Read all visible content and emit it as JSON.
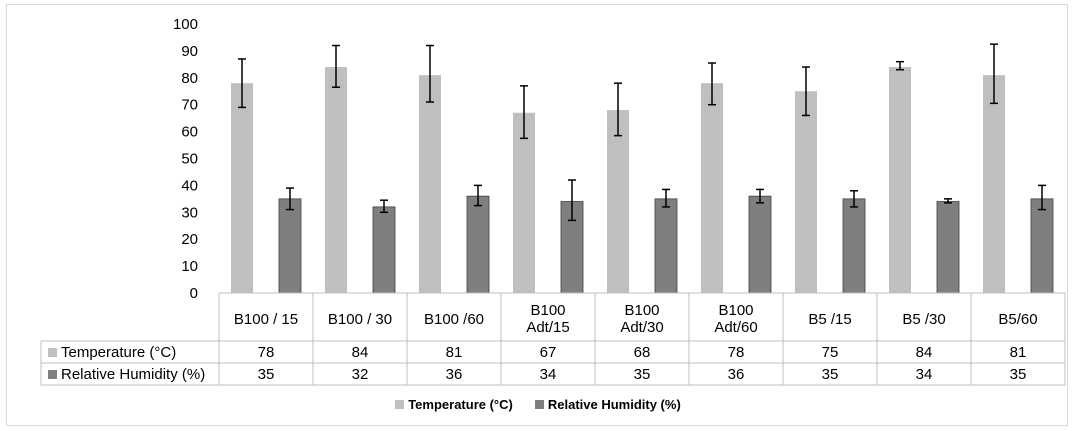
{
  "chart_data": {
    "type": "bar",
    "categories": [
      "B100 / 15",
      "B100 / 30",
      "B100 /60",
      "B100\nAdt/15",
      "B100\nAdt/30",
      "B100\nAdt/60",
      "B5 /15",
      "B5 /30",
      "B5/60"
    ],
    "series": [
      {
        "name": "Temperature (°C)",
        "color": "#bfbfbf",
        "values": [
          78,
          84,
          81,
          67,
          68,
          78,
          75,
          84,
          81
        ],
        "error_low": [
          69,
          76.5,
          71,
          57.5,
          58.5,
          70,
          66,
          83,
          70.5
        ],
        "error_high": [
          87,
          92,
          92,
          77,
          78,
          85.5,
          84,
          86,
          92.5
        ],
        "table_values": [
          "78",
          "84",
          "81",
          "67",
          "68",
          "78",
          "75",
          "84",
          "81"
        ]
      },
      {
        "name": "Relative Humidity (%)",
        "color": "#7f7f7f",
        "values": [
          35,
          32,
          36,
          34,
          35,
          36,
          35,
          34,
          35
        ],
        "error_low": [
          31,
          30,
          32.5,
          27,
          32,
          33.5,
          32,
          33.5,
          31
        ],
        "error_high": [
          39,
          34.5,
          40,
          42,
          38.5,
          38.5,
          38,
          35,
          40
        ],
        "table_values": [
          "35",
          "32",
          "36",
          "34",
          "35",
          "36",
          "35",
          "34",
          "35"
        ]
      }
    ],
    "ylim": [
      0,
      100
    ],
    "yticks": [
      "0",
      "10",
      "20",
      "30",
      "40",
      "50",
      "60",
      "70",
      "80",
      "90",
      "100"
    ],
    "grid": false,
    "legend_position": "bottom",
    "data_table": true
  }
}
